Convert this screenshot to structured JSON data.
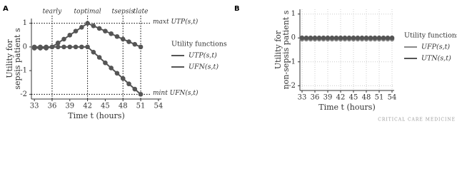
{
  "chart_data": [
    {
      "type": "line",
      "panel": "A",
      "ylabel": [
        "Utility for",
        "sepsis patient s"
      ],
      "xlabel": "Time t (hours)",
      "legend_title": "Utility functions",
      "x": [
        33,
        34,
        35,
        36,
        37,
        38,
        39,
        40,
        41,
        42,
        43,
        44,
        45,
        46,
        47,
        48,
        49,
        50,
        51
      ],
      "series": [
        {
          "name": "UTP(s,t)",
          "color": "#555555",
          "values": [
            -0.05,
            -0.05,
            -0.05,
            0,
            0.17,
            0.33,
            0.5,
            0.67,
            0.83,
            1,
            0.89,
            0.78,
            0.67,
            0.56,
            0.44,
            0.33,
            0.22,
            0.11,
            0
          ]
        },
        {
          "name": "UFN(s,t)",
          "color": "#555555",
          "values": [
            0,
            0,
            0,
            0,
            0,
            0,
            0,
            0,
            0,
            0,
            -0.22,
            -0.44,
            -0.67,
            -0.89,
            -1.11,
            -1.33,
            -1.56,
            -1.78,
            -2
          ]
        }
      ],
      "vlines": [
        {
          "text": "tearly",
          "x": 36
        },
        {
          "text": "toptimal",
          "x": 42
        },
        {
          "text": "tsepsis",
          "x": 48
        },
        {
          "text": "tlate",
          "x": 51
        }
      ],
      "hlines": [
        {
          "text": "maxt UTP(s,t)",
          "y": 1
        },
        {
          "text": "mint UFN(s,t)",
          "y": -2
        }
      ],
      "xlim": [
        32.5,
        54.5
      ],
      "xticks": [
        33,
        36,
        39,
        42,
        45,
        48,
        51,
        54
      ],
      "ylim": [
        -2.2,
        1.2
      ],
      "yticks": [
        1,
        0,
        -1,
        -2
      ],
      "grid": false
    },
    {
      "type": "line",
      "panel": "B",
      "ylabel": [
        "Utility for",
        "non-sepsis patient s"
      ],
      "xlabel": "Time t (hours)",
      "legend_title": "Utility functions",
      "x": [
        33,
        34,
        35,
        36,
        37,
        38,
        39,
        40,
        41,
        42,
        43,
        44,
        45,
        46,
        47,
        48,
        49,
        50,
        51,
        52,
        53,
        54
      ],
      "series": [
        {
          "name": "UFP(s,t)",
          "color": "#8a8a8a",
          "values": [
            -0.05,
            -0.05,
            -0.05,
            -0.05,
            -0.05,
            -0.05,
            -0.05,
            -0.05,
            -0.05,
            -0.05,
            -0.05,
            -0.05,
            -0.05,
            -0.05,
            -0.05,
            -0.05,
            -0.05,
            -0.05,
            -0.05,
            -0.05,
            -0.05,
            -0.05
          ]
        },
        {
          "name": "UTN(s,t)",
          "color": "#555555",
          "values": [
            0,
            0,
            0,
            0,
            0,
            0,
            0,
            0,
            0,
            0,
            0,
            0,
            0,
            0,
            0,
            0,
            0,
            0,
            0,
            0,
            0,
            0
          ]
        }
      ],
      "vlines": [],
      "hlines": [],
      "xlim": [
        32.5,
        54.5
      ],
      "xticks": [
        33,
        36,
        39,
        42,
        45,
        48,
        51,
        54
      ],
      "ylim": [
        -2.2,
        1.2
      ],
      "yticks": [
        1,
        0,
        -1,
        -2
      ],
      "grid": true
    }
  ],
  "watermark": "CRITICAL CARE MEDICINE"
}
